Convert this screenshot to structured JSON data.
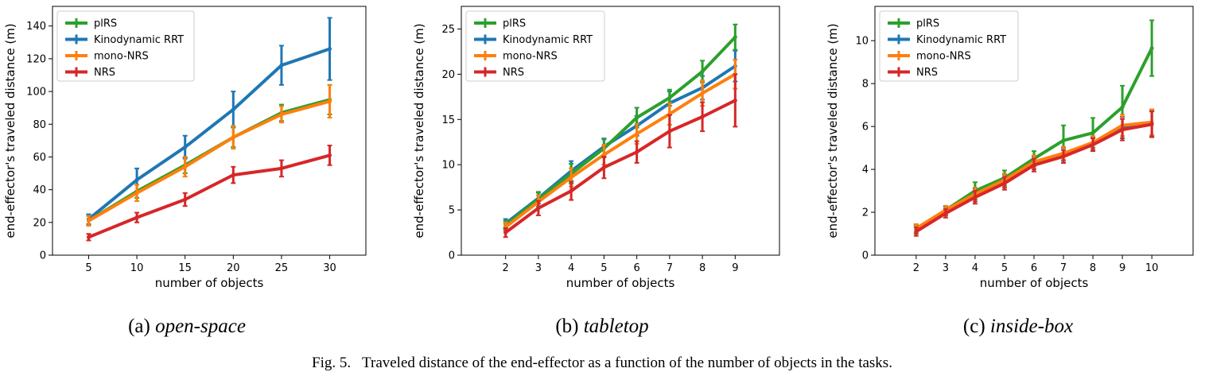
{
  "figure": {
    "caption": "Fig. 5.   Traveled distance of the end-effector as a function of the number of objects in the tasks."
  },
  "colors": {
    "plRS": "#2ca02c",
    "Kinodynamic RRT": "#1f77b4",
    "mono-NRS": "#ff7f0e",
    "NRS": "#d62728"
  },
  "chart_data": [
    {
      "type": "line",
      "subcaption_label": "(a)",
      "subcaption_name": "open-space",
      "xlabel": "number of objects",
      "ylabel": "end-effector's traveled distance (m)",
      "xlim": [
        1.25,
        33.75
      ],
      "ylim": [
        0,
        152
      ],
      "xticks": [
        5,
        10,
        15,
        20,
        25,
        30
      ],
      "yticks": [
        0,
        20,
        40,
        60,
        80,
        100,
        120,
        140
      ],
      "legend": "top-left",
      "grid": false,
      "x": [
        5,
        10,
        15,
        20,
        25,
        30
      ],
      "series": [
        {
          "name": "plRS",
          "values": [
            21,
            39,
            55,
            72,
            87,
            95
          ],
          "errors": [
            3,
            4,
            5,
            6,
            5,
            9
          ]
        },
        {
          "name": "Kinodynamic RRT",
          "values": [
            22,
            46,
            66,
            89,
            116,
            126
          ],
          "errors": [
            3,
            7,
            7,
            11,
            12,
            19
          ]
        },
        {
          "name": "mono-NRS",
          "values": [
            21,
            38,
            54,
            72,
            86,
            94
          ],
          "errors": [
            3,
            5,
            6,
            7,
            5,
            10
          ]
        },
        {
          "name": "NRS",
          "values": [
            11,
            23,
            34,
            49,
            53,
            61
          ],
          "errors": [
            2,
            3,
            4,
            5,
            5,
            6
          ]
        }
      ]
    },
    {
      "type": "line",
      "subcaption_label": "(b)",
      "subcaption_name": "tabletop",
      "xlabel": "number of objects",
      "ylabel": "end-effector's traveled distance (m)",
      "xlim": [
        0.65,
        10.35
      ],
      "ylim": [
        0,
        27.5
      ],
      "xticks": [
        2,
        3,
        4,
        5,
        6,
        7,
        8,
        9
      ],
      "yticks": [
        0,
        5,
        10,
        15,
        20,
        25
      ],
      "legend": "top-left",
      "grid": false,
      "x": [
        2,
        3,
        4,
        5,
        6,
        7,
        8,
        9
      ],
      "series": [
        {
          "name": "plRS",
          "values": [
            3.3,
            6.2,
            9.0,
            11.8,
            15.2,
            17.4,
            20.3,
            24.1
          ],
          "errors": [
            0.5,
            0.8,
            1.1,
            1.0,
            1.1,
            0.9,
            1.2,
            1.4
          ]
        },
        {
          "name": "Kinodynamic RRT",
          "values": [
            3.5,
            6.3,
            9.3,
            12.0,
            14.3,
            16.8,
            18.5,
            20.9
          ],
          "errors": [
            0.5,
            0.6,
            1.1,
            0.9,
            1.1,
            1.3,
            1.3,
            1.7
          ]
        },
        {
          "name": "mono-NRS",
          "values": [
            3.1,
            5.9,
            8.6,
            11.1,
            13.4,
            15.6,
            17.9,
            20.0
          ],
          "errors": [
            0.5,
            0.7,
            1.0,
            1.1,
            1.1,
            1.2,
            1.4,
            1.6
          ]
        },
        {
          "name": "NRS",
          "values": [
            2.5,
            5.2,
            7.1,
            9.7,
            11.4,
            13.7,
            15.3,
            17.1
          ],
          "errors": [
            0.5,
            0.8,
            1.0,
            1.2,
            1.2,
            1.8,
            1.6,
            2.9
          ]
        }
      ]
    },
    {
      "type": "line",
      "subcaption_label": "(c)",
      "subcaption_name": "inside-box",
      "xlabel": "number of objects",
      "ylabel": "end-effector's traveled distance (m)",
      "xlim": [
        0.6,
        11.4
      ],
      "ylim": [
        0,
        11.6
      ],
      "xticks": [
        2,
        3,
        4,
        5,
        6,
        7,
        8,
        9,
        10
      ],
      "yticks": [
        0,
        2,
        4,
        6,
        8,
        10
      ],
      "legend": "top-left",
      "grid": false,
      "x": [
        2,
        3,
        4,
        5,
        6,
        7,
        8,
        9,
        10
      ],
      "series": [
        {
          "name": "plRS",
          "values": [
            1.2,
            2.1,
            3.0,
            3.6,
            4.5,
            5.35,
            5.7,
            6.9,
            9.65
          ],
          "errors": [
            0.2,
            0.2,
            0.4,
            0.35,
            0.35,
            0.7,
            0.7,
            1.0,
            1.3
          ]
        },
        {
          "name": "Kinodynamic RRT",
          "values": [
            1.2,
            2.05,
            2.8,
            3.45,
            4.3,
            4.7,
            5.2,
            5.95,
            6.15
          ],
          "errors": [
            0.2,
            0.2,
            0.3,
            0.3,
            0.3,
            0.3,
            0.3,
            0.5,
            0.6
          ]
        },
        {
          "name": "mono-NRS",
          "values": [
            1.25,
            2.1,
            2.85,
            3.5,
            4.35,
            4.75,
            5.25,
            6.05,
            6.2
          ],
          "errors": [
            0.2,
            0.2,
            0.3,
            0.3,
            0.3,
            0.3,
            0.3,
            0.5,
            0.6
          ]
        },
        {
          "name": "NRS",
          "values": [
            1.1,
            1.95,
            2.7,
            3.35,
            4.2,
            4.6,
            5.15,
            5.85,
            6.1
          ],
          "errors": [
            0.2,
            0.2,
            0.3,
            0.3,
            0.3,
            0.3,
            0.3,
            0.5,
            0.6
          ]
        }
      ]
    }
  ]
}
